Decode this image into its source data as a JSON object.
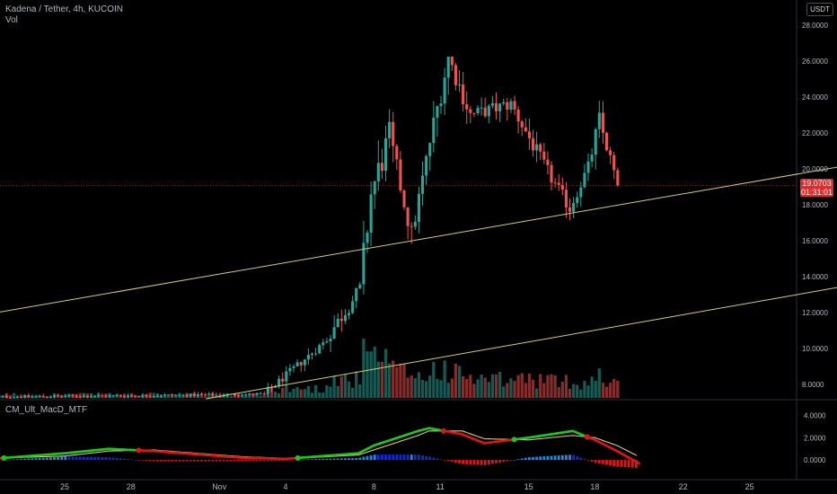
{
  "header": {
    "symbol_title": "Kadena / Tether, 4h, KUCOIN",
    "volume_label": "Vol",
    "indicator_label": "CM_Ult_MacD_MTF",
    "currency": "USDT"
  },
  "last_price": {
    "value": "19.0703",
    "countdown": "01:31:01"
  },
  "colors": {
    "background": "#000000",
    "up": "#26a69a",
    "down": "#ef5350",
    "trendline": "#d4cf6a",
    "macd_up": "#22c51e",
    "macd_down": "#e01414",
    "signal": "#d4cf6a",
    "hist_pos_strong": "#1e88e5",
    "hist_pos_weak": "#0d2bd1",
    "hist_neg": "#e01414",
    "last_price": "#e22b2b"
  },
  "chart_data": [
    {
      "type": "candlestick",
      "title": "Kadena / Tether, 4h, KUCOIN",
      "y_axis": {
        "ticks": [
          "8.0000",
          "10.0000",
          "12.0000",
          "14.0000",
          "16.0000",
          "18.0000",
          "20.0000",
          "22.0000",
          "24.0000",
          "26.0000",
          "28.0000"
        ],
        "range": [
          7.2,
          29.0
        ]
      },
      "x_axis": {
        "ticks": [
          "25",
          "28",
          "Nov",
          "4",
          "8",
          "11",
          "15",
          "18",
          "22",
          "25"
        ]
      },
      "days_per_tick": [
        0,
        3,
        7,
        10,
        14,
        17,
        21,
        24,
        28,
        31
      ],
      "candles_per_day": 6,
      "phases": [
        {
          "count": 75,
          "start": 7.3,
          "end": 7.45,
          "vol": 0.3
        },
        {
          "count": 16,
          "start": 7.45,
          "end": 10.3,
          "vol": 0.8
        },
        {
          "count": 10,
          "start": 10.3,
          "end": 13.3,
          "vol": 1.6
        },
        {
          "count": 3,
          "start": 13.3,
          "end": 18.6,
          "vol": 3.5
        },
        {
          "count": 5,
          "start": 18.6,
          "end": 21.8,
          "vol": 3.2
        },
        {
          "count": 6,
          "start": 21.8,
          "end": 16.3,
          "vol": 2.2
        },
        {
          "count": 5,
          "start": 16.3,
          "end": 21.5,
          "vol": 1.9
        },
        {
          "count": 5,
          "start": 21.5,
          "end": 26.2,
          "vol": 2.5
        },
        {
          "count": 6,
          "start": 26.2,
          "end": 23.0,
          "vol": 2.0
        },
        {
          "count": 11,
          "start": 23.0,
          "end": 23.6,
          "vol": 1.5
        },
        {
          "count": 10,
          "start": 23.6,
          "end": 19.8,
          "vol": 1.6
        },
        {
          "count": 6,
          "start": 19.8,
          "end": 17.8,
          "vol": 1.4
        },
        {
          "count": 5,
          "start": 17.8,
          "end": 20.1,
          "vol": 1.3
        },
        {
          "count": 3,
          "start": 20.1,
          "end": 22.7,
          "vol": 2.0
        },
        {
          "count": 5,
          "start": 22.7,
          "end": 19.07,
          "vol": 1.5
        }
      ],
      "trendlines": [
        {
          "from": {
            "day": -3.3,
            "price": 11.95
          },
          "to": {
            "day": 35.0,
            "price": 20.1
          }
        },
        {
          "from": {
            "day": 6.4,
            "price": 7.2
          },
          "to": {
            "day": 35.0,
            "price": 13.4
          }
        }
      ],
      "last_price": 19.0703
    },
    {
      "type": "line",
      "title": "CM_Ult_MacD_MTF",
      "y_axis": {
        "ticks": [
          "0.0000",
          "2.0000",
          "4.0000"
        ],
        "range": [
          -1.6,
          5.0
        ]
      },
      "series": [
        {
          "role": "macd",
          "x": [
            -3.3,
            0,
            2,
            4,
            6,
            8,
            10,
            11,
            13.3,
            14,
            16,
            16.5,
            18,
            19,
            21,
            23,
            24,
            25,
            26
          ],
          "y": [
            0.1,
            0.6,
            1.0,
            0.8,
            0.5,
            0.2,
            0.1,
            0.25,
            0.6,
            1.3,
            2.6,
            2.85,
            2.3,
            1.5,
            2.0,
            2.6,
            1.8,
            0.8,
            -0.3
          ]
        },
        {
          "role": "signal",
          "x": [
            -3.3,
            0,
            2,
            4,
            6,
            8,
            10,
            11,
            13.3,
            14,
            16,
            16.5,
            18,
            19,
            21,
            23,
            24,
            25,
            26
          ],
          "y": [
            0.15,
            0.35,
            0.8,
            0.9,
            0.6,
            0.3,
            0.15,
            0.2,
            0.45,
            0.9,
            2.2,
            2.6,
            2.6,
            1.9,
            1.8,
            2.2,
            2.0,
            1.3,
            0.3
          ]
        }
      ]
    }
  ]
}
